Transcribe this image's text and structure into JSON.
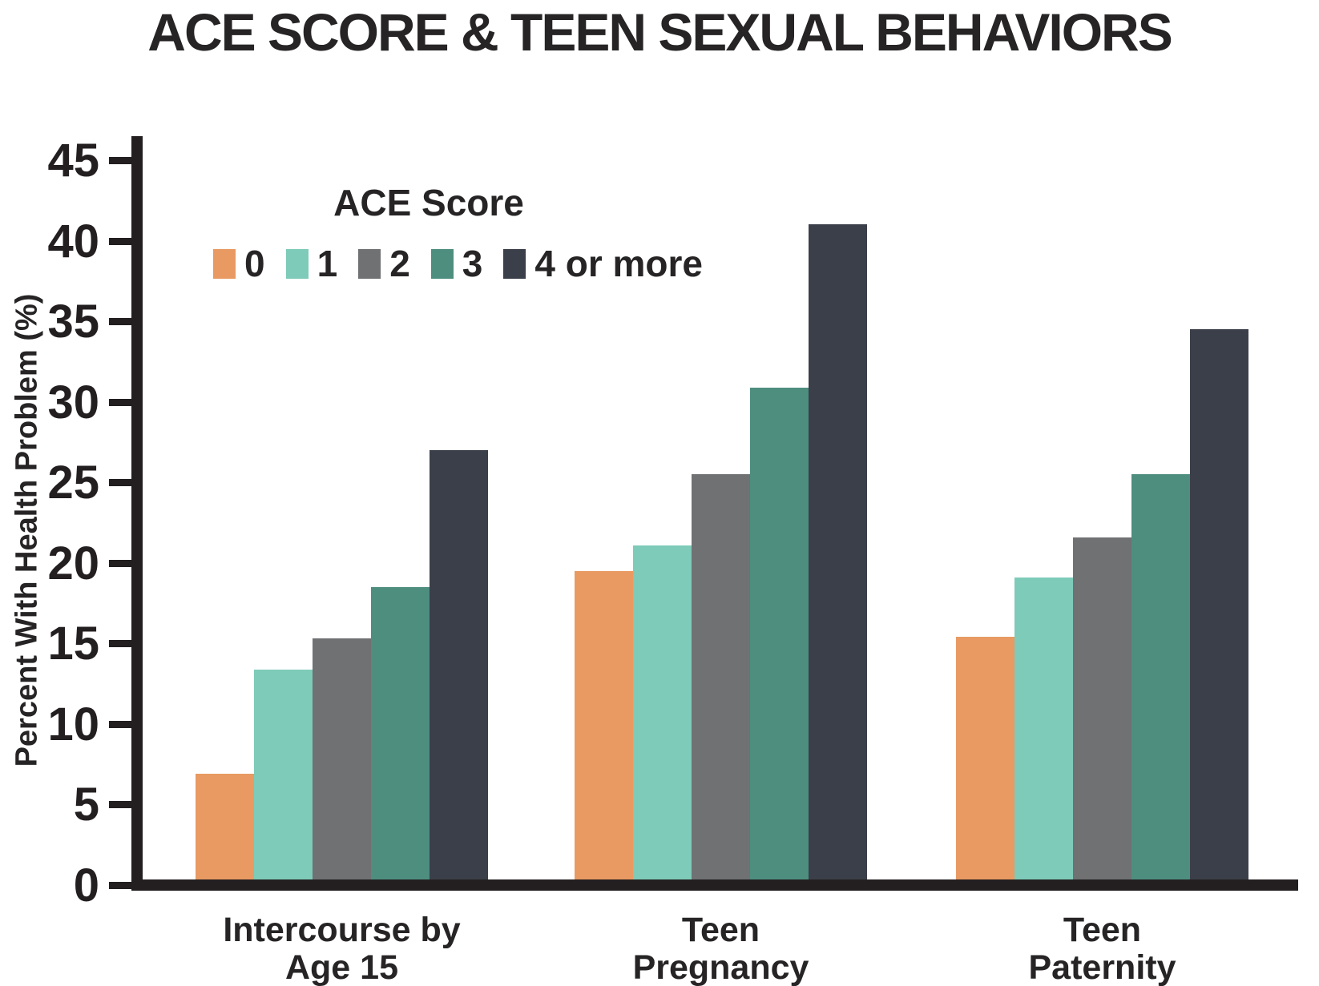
{
  "title": "ACE SCORE & TEEN SEXUAL BEHAVIORS",
  "chart_data": {
    "type": "bar",
    "title": "ACE SCORE & TEEN SEXUAL BEHAVIORS",
    "ylabel": "Percent With Health Problem (%)",
    "ylim": [
      0,
      45
    ],
    "ytick_step": 5,
    "ytick_labels": [
      "0",
      "5",
      "10",
      "15",
      "20",
      "25",
      "30",
      "35",
      "40",
      "45"
    ],
    "grid": false,
    "legend_title": "ACE Score",
    "legend_position": "upper-left-inside",
    "axis_color": "#231f20",
    "text_color": "#262425",
    "categories": [
      "Intercourse by\nAge 15",
      "Teen\nPregnancy",
      "Teen\nPaternity"
    ],
    "series": [
      {
        "name": "0",
        "color": "#E89A62",
        "values": [
          6.9,
          19.5,
          15.4
        ]
      },
      {
        "name": "1",
        "color": "#7DCBB8",
        "values": [
          13.4,
          21.1,
          19.1
        ]
      },
      {
        "name": "2",
        "color": "#6F7173",
        "values": [
          15.3,
          25.5,
          21.6
        ]
      },
      {
        "name": "3",
        "color": "#4E8E7F",
        "values": [
          18.5,
          30.9,
          25.5
        ]
      },
      {
        "name": "4 or more",
        "color": "#3B3F4A",
        "values": [
          27.0,
          41.0,
          34.5
        ]
      }
    ]
  }
}
